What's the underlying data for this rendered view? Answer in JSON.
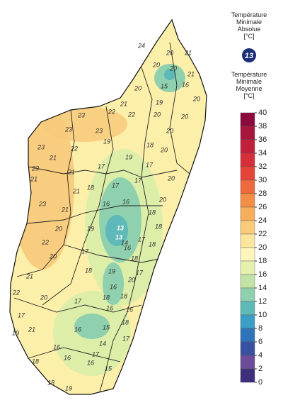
{
  "legend": {
    "absolute": {
      "title_lines": [
        "Température",
        "Minimale",
        "Absolue",
        "[°C]"
      ],
      "badge": 13
    },
    "mean": {
      "title_lines": [
        "Température",
        "Minimale",
        "Moyenne",
        "[°C]"
      ]
    },
    "scale": {
      "ticks": [
        40,
        38,
        36,
        34,
        32,
        30,
        28,
        26,
        24,
        22,
        20,
        18,
        16,
        14,
        12,
        10,
        8,
        6,
        4,
        2,
        0
      ],
      "colors": [
        "#8c0a3c",
        "#a8163e",
        "#c21f3b",
        "#d62f39",
        "#e5443a",
        "#ee6a3e",
        "#f38e48",
        "#f6ad5c",
        "#f9cb7a",
        "#fce59c",
        "#fdf5bb",
        "#e6f1b0",
        "#c3e3a6",
        "#8fd0ae",
        "#5fb9b8",
        "#3b9ec6",
        "#2d74b9",
        "#3a51a2",
        "#6a4c98",
        "#3d2f7c"
      ]
    }
  },
  "map": {
    "labels": [
      24,
      20,
      21,
      20,
      20,
      15,
      16,
      21,
      20,
      19,
      20,
      21,
      22,
      22,
      23,
      23,
      23,
      19,
      20,
      20,
      20,
      20,
      18,
      19,
      23,
      22,
      21,
      17,
      17,
      21,
      20,
      23,
      21,
      18,
      17,
      17,
      16,
      16,
      21,
      20,
      23,
      21,
      18,
      19,
      17,
      18,
      20,
      16,
      14,
      22,
      20,
      17,
      18,
      18,
      17,
      18,
      19,
      21,
      20,
      16,
      22,
      20,
      17,
      18,
      18,
      16,
      16,
      17,
      18,
      16,
      15,
      16,
      21,
      17,
      14,
      19,
      18,
      16,
      16,
      15,
      19,
      18,
      17
    ],
    "absolute_labels": [
      13,
      13
    ]
  }
}
